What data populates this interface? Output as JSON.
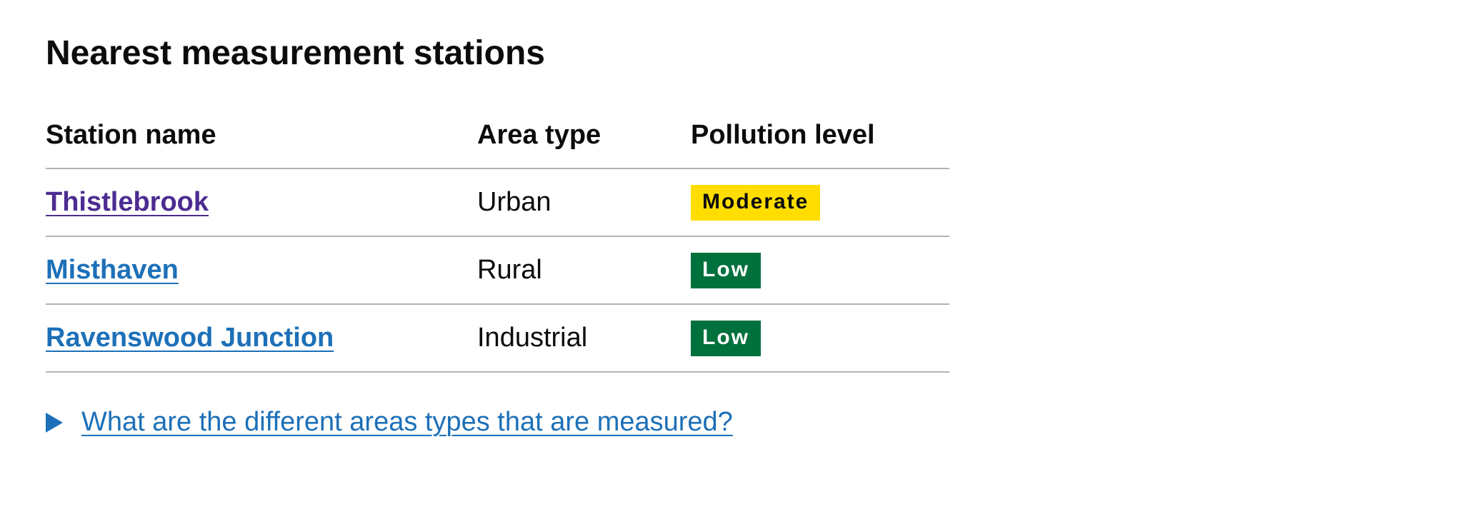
{
  "page": {
    "title": "Nearest measurement stations"
  },
  "table": {
    "headers": {
      "station_name": "Station name",
      "area_type": "Area type",
      "pollution_level": "Pollution level"
    },
    "rows": [
      {
        "station_name": "Thistlebrook",
        "visited": true,
        "area_type": "Urban",
        "pollution_level": "Moderate",
        "tag_bg": "#ffdd00",
        "tag_fg": "#0b0c0c"
      },
      {
        "station_name": "Misthaven",
        "visited": false,
        "area_type": "Rural",
        "pollution_level": "Low",
        "tag_bg": "#00703c",
        "tag_fg": "#ffffff"
      },
      {
        "station_name": "Ravenswood Junction",
        "visited": false,
        "area_type": "Industrial",
        "pollution_level": "Low",
        "tag_bg": "#00703c",
        "tag_fg": "#ffffff"
      }
    ]
  },
  "details": {
    "summary": "What are the different areas types that are measured?",
    "icon": "triangle-right-icon"
  },
  "colors": {
    "link": "#1d70b8",
    "visited_link": "#4c2c92",
    "text": "#0b0c0c",
    "border": "#b1b4b6"
  }
}
